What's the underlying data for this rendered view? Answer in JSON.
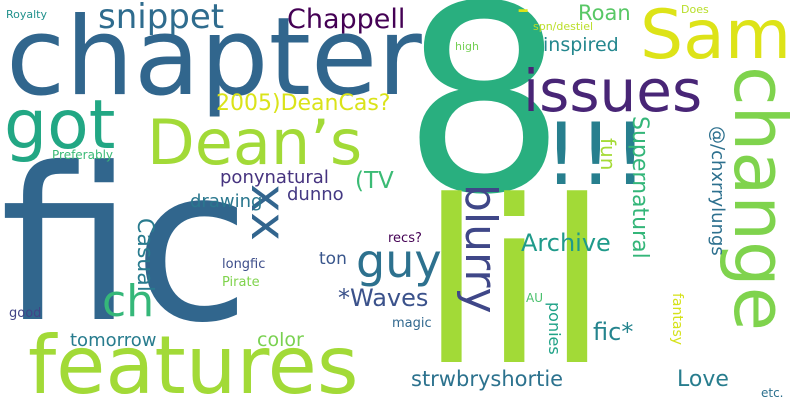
{
  "words": [
    {
      "text": "fic",
      "color": "#31668d",
      "vertical": false
    },
    {
      "text": "8",
      "color": "#29af7f",
      "vertical": false
    },
    {
      "text": "lil",
      "color": "#a2da37",
      "vertical": false
    },
    {
      "text": "chapter",
      "color": "#31668d",
      "vertical": false
    },
    {
      "text": "features",
      "color": "#a2da37",
      "vertical": false
    },
    {
      "text": "change",
      "color": "#7fd34d",
      "vertical": true
    },
    {
      "text": "Dean’s",
      "color": "#a2da37",
      "vertical": false
    },
    {
      "text": "got",
      "color": "#22a784",
      "vertical": false
    },
    {
      "text": "Sam",
      "color": "#dde318",
      "vertical": false
    },
    {
      "text": "issues",
      "color": "#482576",
      "vertical": false
    },
    {
      "text": "!!!",
      "color": "#277f8e",
      "vertical": false
    },
    {
      "text": "xx",
      "color": "#32658e",
      "vertical": true
    },
    {
      "text": "guy",
      "color": "#2d718e",
      "vertical": false
    },
    {
      "text": "ch",
      "color": "#35b779",
      "vertical": false
    },
    {
      "text": "blurry",
      "color": "#3f4788",
      "vertical": true
    },
    {
      "text": "snippet",
      "color": "#2f6c8e",
      "vertical": false
    },
    {
      "text": "Chappell",
      "color": "#440154",
      "vertical": false
    },
    {
      "text": "Roan",
      "color": "#58c765",
      "vertical": false
    },
    {
      "text": "inspired",
      "color": "#24878e",
      "vertical": false
    },
    {
      "text": "2005)DeanCas?",
      "color": "#dae319",
      "vertical": false
    },
    {
      "text": "ponynatural",
      "color": "#46337f",
      "vertical": false
    },
    {
      "text": "(TV",
      "color": "#3bbb75",
      "vertical": false
    },
    {
      "text": "dunno",
      "color": "#443983",
      "vertical": false
    },
    {
      "text": "drawing",
      "color": "#2a778e",
      "vertical": false
    },
    {
      "text": "Casual",
      "color": "#297b8e",
      "vertical": true
    },
    {
      "text": "Archive",
      "color": "#1f9a8a",
      "vertical": false
    },
    {
      "text": "Supernatural",
      "color": "#34b679",
      "vertical": true
    },
    {
      "text": "fun",
      "color": "#a5db36",
      "vertical": true
    },
    {
      "text": "@/chxrrylungs",
      "color": "#2d708e",
      "vertical": true
    },
    {
      "text": "*Waves",
      "color": "#3b528b",
      "vertical": false
    },
    {
      "text": "ton",
      "color": "#39568c",
      "vertical": false
    },
    {
      "text": "recs?",
      "color": "#440154",
      "vertical": false
    },
    {
      "text": "longfic",
      "color": "#3d4e8a",
      "vertical": false
    },
    {
      "text": "Pirate",
      "color": "#7fd34d",
      "vertical": false
    },
    {
      "text": "fic*",
      "color": "#25848e",
      "vertical": false
    },
    {
      "text": "tomorrow",
      "color": "#287c8e",
      "vertical": false
    },
    {
      "text": "color",
      "color": "#7ad151",
      "vertical": false
    },
    {
      "text": "magic",
      "color": "#31688e",
      "vertical": false
    },
    {
      "text": "strwbryshortie",
      "color": "#2c728e",
      "vertical": false
    },
    {
      "text": "Love",
      "color": "#287d8e",
      "vertical": false
    },
    {
      "text": "ponies",
      "color": "#1fa287",
      "vertical": true
    },
    {
      "text": "fantasy",
      "color": "#d5e21a",
      "vertical": true
    },
    {
      "text": "AU",
      "color": "#4ac16d",
      "vertical": false
    },
    {
      "text": "etc.",
      "color": "#2d718e",
      "vertical": false
    },
    {
      "text": "good",
      "color": "#414487",
      "vertical": false
    },
    {
      "text": "Preferably",
      "color": "#3aba76",
      "vertical": false
    },
    {
      "text": "Royalty",
      "color": "#21918c",
      "vertical": false
    },
    {
      "text": "high",
      "color": "#75d054",
      "vertical": false
    },
    {
      "text": "spn/destiel",
      "color": "#bade28",
      "vertical": false
    },
    {
      "text": "Does",
      "color": "#b8de29",
      "vertical": false
    },
    {
      "text": "-",
      "color": "#dde318",
      "vertical": false
    }
  ]
}
